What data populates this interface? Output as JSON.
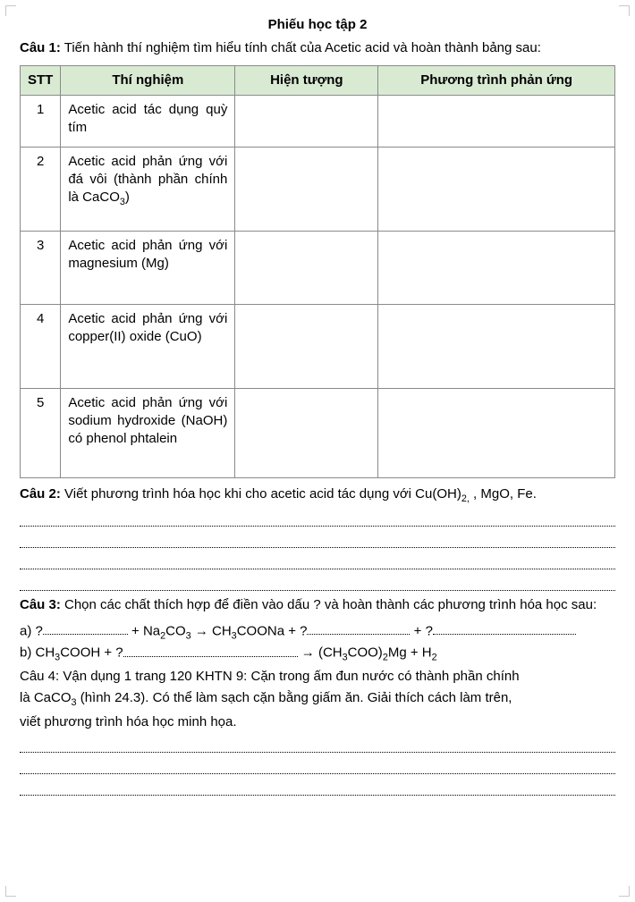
{
  "title": "Phiếu học tập 2",
  "q1": {
    "label": "Câu 1:",
    "text": " Tiến hành thí nghiệm tìm hiểu tính chất của Acetic acid  và hoàn thành bảng sau:"
  },
  "table": {
    "headers": {
      "stt": "STT",
      "tn": "Thí nghiệm",
      "ht": "Hiện tượng",
      "pt": "Phương trình phản ứng"
    },
    "rows": [
      {
        "stt": "1",
        "tn": "Acetic acid tác dụng quỳ tím",
        "ht": "",
        "pt": "",
        "hclass": "row-low"
      },
      {
        "stt": "2",
        "tn": "Acetic acid phản ứng với đá vôi (thành phần chính là CaCO",
        "tn_sub": "3",
        "tn_tail": ")",
        "ht": "",
        "pt": "",
        "hclass": "row-tall"
      },
      {
        "stt": "3",
        "tn": "Acetic acid phản ứng với  magnesium (Mg)",
        "ht": "",
        "pt": "",
        "hclass": "row-med"
      },
      {
        "stt": "4",
        "tn": "Acetic acid phản ứng với copper(II) oxide (CuO)",
        "ht": "",
        "pt": "",
        "hclass": "row-tall"
      },
      {
        "stt": "5",
        "tn": "Acetic acid phản ứng với sodium hydroxide (NaOH) có phenol phtalein",
        "ht": "",
        "pt": "",
        "hclass": "row-taller"
      }
    ]
  },
  "q2": {
    "label": "Câu 2:",
    "text_head": " Viết phương trình hóa học khi cho acetic acid tác dụng với Cu(OH)",
    "sub": "2,",
    "text_tail": " , MgO, Fe."
  },
  "q3": {
    "label": "Câu 3:",
    "text": " Chọn các chất thích hợp để điền vào dấu ? và hoàn thành các phương trình hóa học sau:",
    "a": {
      "prefix": "a) ?",
      "mid1": " +   Na",
      "sub1": "2",
      "mid2": "CO",
      "sub2": "3",
      "arrow": " →   CH",
      "sub3": "3",
      "mid3": "COONa + ?",
      "plus": " + ?"
    },
    "b": {
      "prefix": "b)    CH",
      "sub1": "3",
      "mid1": "COOH + ?",
      "arrow": "   →   (CH",
      "sub2": "3",
      "mid2": "COO)",
      "sub3": "2",
      "mid3": "Mg +  H",
      "sub4": "2"
    }
  },
  "q4": {
    "line1_a": "Câu 4: Vận dụng 1 trang 120 KHTN 9: Cặn trong ấm đun nước có thành phần chính",
    "line2_a": "là CaCO",
    "line2_sub": "3",
    "line2_b": " (hình 24.3). Có thể làm sạch cặn bằng giấm ăn. Giải thích cách làm trên,",
    "line3": "viết phương trình hóa học minh họa."
  },
  "style": {
    "header_bg": "#d9ead3",
    "border_color": "#8a8a8a",
    "font_size_pt": 11
  }
}
